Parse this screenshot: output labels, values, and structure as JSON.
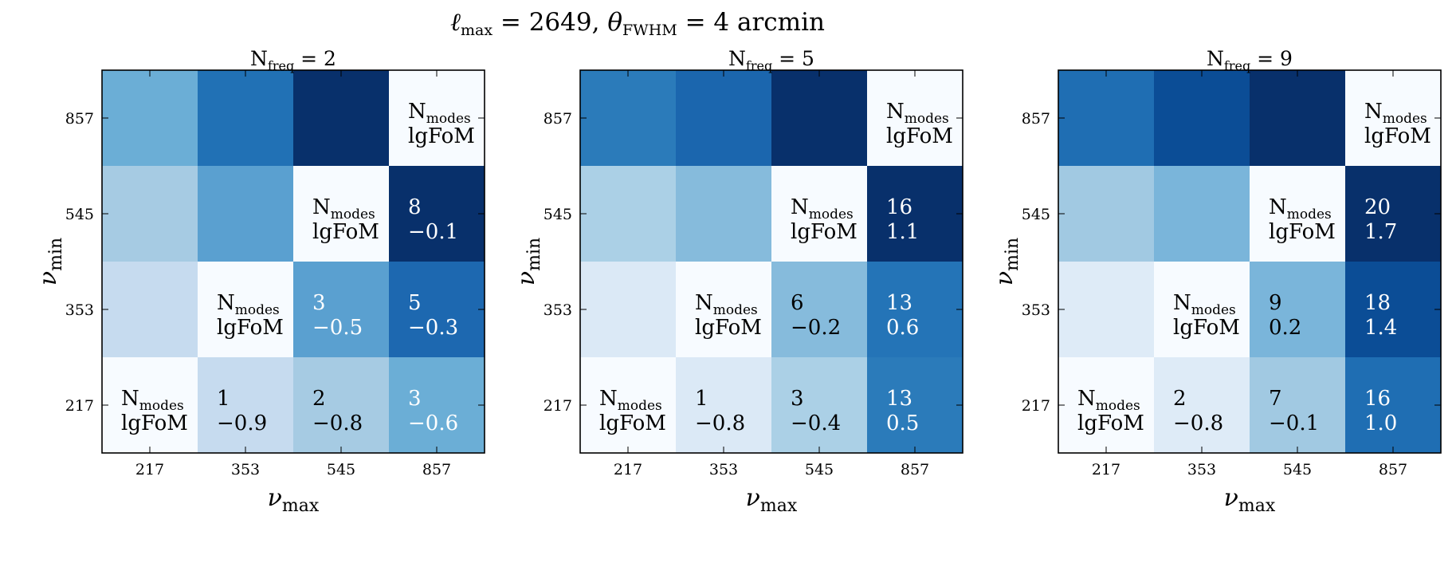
{
  "chart_data": [
    {
      "type": "heatmap",
      "title_main": "N",
      "title_sub": "freq",
      "title_rest": " = 2",
      "xlabel": "ν",
      "xlabel_sub": "max",
      "ylabel": "ν",
      "ylabel_sub": "min",
      "x_ticks": [
        "217",
        "353",
        "545",
        "857"
      ],
      "y_ticks": [
        "857",
        "545",
        "353",
        "217"
      ],
      "cell_colors": [
        [
          "#6baed6",
          "#2171b5",
          "#08306b",
          "#f7fbff"
        ],
        [
          "#a6cbe3",
          "#5aa0d0",
          "#f7fbff",
          "#08306b"
        ],
        [
          "#c6dbef",
          "#f7fbff",
          "#5aa0d0",
          "#1d68b0"
        ],
        [
          "#f7fbff",
          "#c6dbef",
          "#a6cbe3",
          "#6baed6"
        ]
      ],
      "cells": [
        {
          "row": 0,
          "col": 3,
          "kind": "header",
          "color": "#000000"
        },
        {
          "row": 1,
          "col": 2,
          "kind": "header",
          "color": "#000000"
        },
        {
          "row": 1,
          "col": 3,
          "kind": "values",
          "n_modes": "8",
          "lgfom": "−0.1",
          "color": "#ffffff"
        },
        {
          "row": 2,
          "col": 1,
          "kind": "header",
          "color": "#000000"
        },
        {
          "row": 2,
          "col": 2,
          "kind": "values",
          "n_modes": "3",
          "lgfom": "−0.5",
          "color": "#ffffff"
        },
        {
          "row": 2,
          "col": 3,
          "kind": "values",
          "n_modes": "5",
          "lgfom": "−0.3",
          "color": "#ffffff"
        },
        {
          "row": 3,
          "col": 0,
          "kind": "header",
          "color": "#000000"
        },
        {
          "row": 3,
          "col": 1,
          "kind": "values",
          "n_modes": "1",
          "lgfom": "−0.9",
          "color": "#000000"
        },
        {
          "row": 3,
          "col": 2,
          "kind": "values",
          "n_modes": "2",
          "lgfom": "−0.8",
          "color": "#000000"
        },
        {
          "row": 3,
          "col": 3,
          "kind": "values",
          "n_modes": "3",
          "lgfom": "−0.6",
          "color": "#ffffff"
        }
      ]
    },
    {
      "type": "heatmap",
      "title_main": "N",
      "title_sub": "freq",
      "title_rest": " = 5",
      "xlabel": "ν",
      "xlabel_sub": "max",
      "ylabel": "ν",
      "ylabel_sub": "min",
      "x_ticks": [
        "217",
        "353",
        "545",
        "857"
      ],
      "y_ticks": [
        "857",
        "545",
        "353",
        "217"
      ],
      "cell_colors": [
        [
          "#2b7bba",
          "#1b66ae",
          "#08306b",
          "#f7fbff"
        ],
        [
          "#abd0e6",
          "#86bbdc",
          "#f7fbff",
          "#08306b"
        ],
        [
          "#dbe9f6",
          "#f7fbff",
          "#86bbdc",
          "#2474b7"
        ],
        [
          "#f7fbff",
          "#dbe9f6",
          "#abd0e6",
          "#2b7bba"
        ]
      ],
      "cells": [
        {
          "row": 0,
          "col": 3,
          "kind": "header",
          "color": "#000000"
        },
        {
          "row": 1,
          "col": 2,
          "kind": "header",
          "color": "#000000"
        },
        {
          "row": 1,
          "col": 3,
          "kind": "values",
          "n_modes": "16",
          "lgfom": "1.1",
          "color": "#ffffff"
        },
        {
          "row": 2,
          "col": 1,
          "kind": "header",
          "color": "#000000"
        },
        {
          "row": 2,
          "col": 2,
          "kind": "values",
          "n_modes": "6",
          "lgfom": "−0.2",
          "color": "#000000"
        },
        {
          "row": 2,
          "col": 3,
          "kind": "values",
          "n_modes": "13",
          "lgfom": "0.6",
          "color": "#ffffff"
        },
        {
          "row": 3,
          "col": 0,
          "kind": "header",
          "color": "#000000"
        },
        {
          "row": 3,
          "col": 1,
          "kind": "values",
          "n_modes": "1",
          "lgfom": "−0.8",
          "color": "#000000"
        },
        {
          "row": 3,
          "col": 2,
          "kind": "values",
          "n_modes": "3",
          "lgfom": "−0.4",
          "color": "#000000"
        },
        {
          "row": 3,
          "col": 3,
          "kind": "values",
          "n_modes": "13",
          "lgfom": "0.5",
          "color": "#ffffff"
        }
      ]
    },
    {
      "type": "heatmap",
      "title_main": "N",
      "title_sub": "freq",
      "title_rest": " = 9",
      "xlabel": "ν",
      "xlabel_sub": "max",
      "ylabel": "ν",
      "ylabel_sub": "min",
      "x_ticks": [
        "217",
        "353",
        "545",
        "857"
      ],
      "y_ticks": [
        "857",
        "545",
        "353",
        "217"
      ],
      "cell_colors": [
        [
          "#1f6eb3",
          "#0b4d96",
          "#08306b",
          "#f7fbff"
        ],
        [
          "#a1c9e2",
          "#7ab5da",
          "#f7fbff",
          "#08306b"
        ],
        [
          "#deebf7",
          "#f7fbff",
          "#7ab5da",
          "#0b4d96"
        ],
        [
          "#f7fbff",
          "#deebf7",
          "#a1c9e2",
          "#1f6eb3"
        ]
      ],
      "cells": [
        {
          "row": 0,
          "col": 3,
          "kind": "header",
          "color": "#000000"
        },
        {
          "row": 1,
          "col": 2,
          "kind": "header",
          "color": "#000000"
        },
        {
          "row": 1,
          "col": 3,
          "kind": "values",
          "n_modes": "20",
          "lgfom": "1.7",
          "color": "#ffffff"
        },
        {
          "row": 2,
          "col": 1,
          "kind": "header",
          "color": "#000000"
        },
        {
          "row": 2,
          "col": 2,
          "kind": "values",
          "n_modes": "9",
          "lgfom": "0.2",
          "color": "#000000"
        },
        {
          "row": 2,
          "col": 3,
          "kind": "values",
          "n_modes": "18",
          "lgfom": "1.4",
          "color": "#ffffff"
        },
        {
          "row": 3,
          "col": 0,
          "kind": "header",
          "color": "#000000"
        },
        {
          "row": 3,
          "col": 1,
          "kind": "values",
          "n_modes": "2",
          "lgfom": "−0.8",
          "color": "#000000"
        },
        {
          "row": 3,
          "col": 2,
          "kind": "values",
          "n_modes": "7",
          "lgfom": "−0.1",
          "color": "#000000"
        },
        {
          "row": 3,
          "col": 3,
          "kind": "values",
          "n_modes": "16",
          "lgfom": "1.0",
          "color": "#ffffff"
        }
      ]
    }
  ],
  "labels": {
    "header_line1_main": "N",
    "header_line1_sub": "modes",
    "header_line2": "lgFoM"
  },
  "suptitle": {
    "ell": "ℓ",
    "ell_sub": "max",
    "eq1": " = 2649,  ",
    "theta": "θ",
    "theta_sub": "FWHM",
    "eq2": " = 4 arcmin"
  }
}
